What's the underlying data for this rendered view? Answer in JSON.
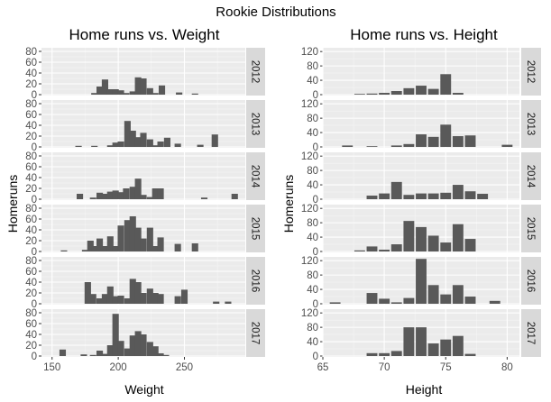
{
  "super_title": "Rookie Distributions",
  "chart_data": [
    {
      "type": "bar",
      "title": "Home runs vs. Weight",
      "xlabel": "Weight",
      "ylabel": "Homeruns",
      "xlim": [
        142,
        296
      ],
      "ylim": [
        0,
        85
      ],
      "xticks": [
        150,
        200,
        250
      ],
      "yticks": [
        0,
        20,
        40,
        60,
        80
      ],
      "bin_width": 5,
      "facets": [
        {
          "label": "2012",
          "bars": [
            [
              182,
              3
            ],
            [
              186,
              15
            ],
            [
              190,
              28
            ],
            [
              194,
              10
            ],
            [
              198,
              10
            ],
            [
              202,
              8
            ],
            [
              206,
              3
            ],
            [
              211,
              6
            ],
            [
              215,
              32
            ],
            [
              219,
              30
            ],
            [
              224,
              12
            ],
            [
              228,
              3
            ],
            [
              233,
              17
            ],
            [
              246,
              4
            ],
            [
              258,
              2
            ]
          ]
        },
        {
          "label": "2013",
          "bars": [
            [
              170,
              2
            ],
            [
              182,
              2
            ],
            [
              194,
              3
            ],
            [
              198,
              8
            ],
            [
              202,
              10
            ],
            [
              207,
              48
            ],
            [
              211,
              30
            ],
            [
              215,
              18
            ],
            [
              219,
              26
            ],
            [
              224,
              14
            ],
            [
              228,
              3
            ],
            [
              232,
              10
            ],
            [
              237,
              17
            ],
            [
              245,
              6
            ],
            [
              262,
              4
            ],
            [
              273,
              23
            ]
          ]
        },
        {
          "label": "2014",
          "bars": [
            [
              171,
              10
            ],
            [
              181,
              3
            ],
            [
              186,
              12
            ],
            [
              190,
              10
            ],
            [
              194,
              14
            ],
            [
              198,
              16
            ],
            [
              202,
              13
            ],
            [
              206,
              20
            ],
            [
              211,
              23
            ],
            [
              215,
              38
            ],
            [
              219,
              8
            ],
            [
              224,
              4
            ],
            [
              228,
              20
            ],
            [
              232,
              20
            ],
            [
              265,
              3
            ],
            [
              288,
              10
            ]
          ]
        },
        {
          "label": "2015",
          "bars": [
            [
              159,
              2
            ],
            [
              175,
              3
            ],
            [
              179,
              20
            ],
            [
              182,
              10
            ],
            [
              186,
              24
            ],
            [
              190,
              10
            ],
            [
              194,
              28
            ],
            [
              198,
              10
            ],
            [
              202,
              48
            ],
            [
              207,
              58
            ],
            [
              211,
              65
            ],
            [
              215,
              44
            ],
            [
              219,
              24
            ],
            [
              224,
              44
            ],
            [
              228,
              10
            ],
            [
              232,
              26
            ],
            [
              245,
              14
            ],
            [
              258,
              15
            ]
          ]
        },
        {
          "label": "2016",
          "bars": [
            [
              177,
              40
            ],
            [
              181,
              18
            ],
            [
              186,
              10
            ],
            [
              190,
              18
            ],
            [
              194,
              32
            ],
            [
              198,
              14
            ],
            [
              202,
              15
            ],
            [
              207,
              10
            ],
            [
              211,
              46
            ],
            [
              215,
              40
            ],
            [
              219,
              20
            ],
            [
              224,
              28
            ],
            [
              228,
              20
            ],
            [
              232,
              18
            ],
            [
              245,
              14
            ],
            [
              250,
              26
            ],
            [
              274,
              4
            ],
            [
              283,
              4
            ]
          ]
        },
        {
          "label": "2017",
          "bars": [
            [
              158,
              12
            ],
            [
              174,
              3
            ],
            [
              181,
              2
            ],
            [
              186,
              10
            ],
            [
              190,
              4
            ],
            [
              194,
              20
            ],
            [
              198,
              78
            ],
            [
              202,
              28
            ],
            [
              207,
              14
            ],
            [
              211,
              38
            ],
            [
              215,
              46
            ],
            [
              219,
              40
            ],
            [
              224,
              26
            ],
            [
              228,
              18
            ],
            [
              232,
              5
            ],
            [
              236,
              2
            ]
          ]
        }
      ]
    },
    {
      "type": "bar",
      "title": "Home runs vs. Height",
      "xlabel": "Height",
      "ylabel": "Homeruns",
      "xlim": [
        65,
        81
      ],
      "ylim": [
        0,
        128
      ],
      "xticks": [
        65,
        70,
        75,
        80
      ],
      "yticks": [
        0,
        40,
        80,
        120
      ],
      "bin_width": 0.9,
      "facets": [
        {
          "label": "2012",
          "bars": [
            [
              68,
              2
            ],
            [
              69,
              3
            ],
            [
              70,
              5
            ],
            [
              71,
              10
            ],
            [
              72,
              18
            ],
            [
              73,
              25
            ],
            [
              74,
              16
            ],
            [
              75,
              57
            ],
            [
              76,
              5
            ]
          ]
        },
        {
          "label": "2013",
          "bars": [
            [
              67,
              4
            ],
            [
              69,
              2
            ],
            [
              71,
              4
            ],
            [
              72,
              8
            ],
            [
              73,
              35
            ],
            [
              74,
              28
            ],
            [
              75,
              62
            ],
            [
              76,
              30
            ],
            [
              77,
              32
            ],
            [
              80,
              6
            ]
          ]
        },
        {
          "label": "2014",
          "bars": [
            [
              69,
              10
            ],
            [
              70,
              16
            ],
            [
              71,
              48
            ],
            [
              72,
              12
            ],
            [
              73,
              16
            ],
            [
              74,
              16
            ],
            [
              75,
              18
            ],
            [
              76,
              40
            ],
            [
              77,
              22
            ],
            [
              78,
              15
            ]
          ]
        },
        {
          "label": "2015",
          "bars": [
            [
              68,
              3
            ],
            [
              69,
              14
            ],
            [
              70,
              5
            ],
            [
              71,
              20
            ],
            [
              72,
              85
            ],
            [
              73,
              68
            ],
            [
              74,
              44
            ],
            [
              75,
              25
            ],
            [
              76,
              76
            ],
            [
              77,
              35
            ]
          ]
        },
        {
          "label": "2016",
          "bars": [
            [
              66,
              4
            ],
            [
              69,
              30
            ],
            [
              70,
              14
            ],
            [
              71,
              4
            ],
            [
              72,
              16
            ],
            [
              73,
              125
            ],
            [
              74,
              52
            ],
            [
              75,
              26
            ],
            [
              76,
              52
            ],
            [
              77,
              20
            ],
            [
              79,
              8
            ]
          ]
        },
        {
          "label": "2017",
          "bars": [
            [
              69,
              8
            ],
            [
              70,
              8
            ],
            [
              71,
              14
            ],
            [
              72,
              80
            ],
            [
              73,
              80
            ],
            [
              74,
              35
            ],
            [
              75,
              46
            ],
            [
              76,
              56
            ],
            [
              77,
              6
            ]
          ]
        }
      ]
    }
  ]
}
